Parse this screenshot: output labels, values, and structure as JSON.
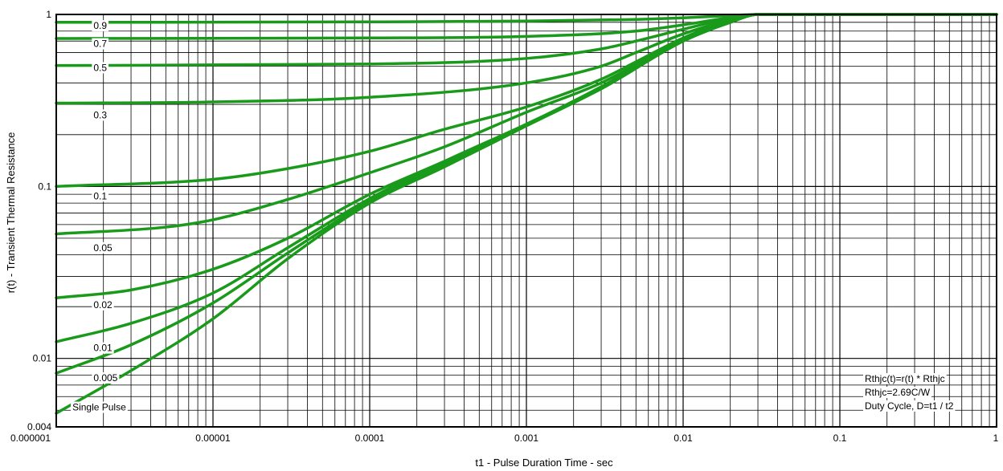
{
  "chart_data": {
    "type": "line",
    "xlabel": "t1 - Pulse Duration Time - sec",
    "ylabel": "r(t) - Transient Thermal Resistance",
    "x_scale": "log",
    "y_scale": "log",
    "xlim": [
      1e-06,
      1
    ],
    "ylim": [
      0.004,
      1
    ],
    "x_ticks": [
      {
        "value": 1e-06,
        "label": "0.000001"
      },
      {
        "value": 1e-05,
        "label": "0.00001"
      },
      {
        "value": 0.0001,
        "label": "0.0001"
      },
      {
        "value": 0.001,
        "label": "0.001"
      },
      {
        "value": 0.01,
        "label": "0.01"
      },
      {
        "value": 0.1,
        "label": "0.1"
      },
      {
        "value": 1,
        "label": "1"
      }
    ],
    "y_ticks": [
      {
        "value": 1,
        "label": "1"
      },
      {
        "value": 0.1,
        "label": "0.1"
      },
      {
        "value": 0.01,
        "label": "0.01"
      },
      {
        "value": 0.004,
        "label": "0.004"
      }
    ],
    "grid": true,
    "line_color": "#1a9a1a",
    "series": [
      {
        "name": "0.9",
        "label_anchor": [
          1.5e-06,
          0.86
        ],
        "points": [
          [
            1e-06,
            0.9
          ],
          [
            0.0001,
            0.905
          ],
          [
            0.001,
            0.915
          ],
          [
            0.005,
            0.935
          ],
          [
            0.01,
            0.955
          ],
          [
            0.02,
            0.985
          ],
          [
            0.03,
            1.0
          ],
          [
            1,
            1.0
          ]
        ]
      },
      {
        "name": "0.7",
        "label_anchor": [
          1.5e-06,
          0.675
        ],
        "points": [
          [
            1e-06,
            0.725
          ],
          [
            0.0001,
            0.73
          ],
          [
            0.001,
            0.745
          ],
          [
            0.005,
            0.8
          ],
          [
            0.01,
            0.87
          ],
          [
            0.02,
            0.96
          ],
          [
            0.03,
            1.0
          ],
          [
            1,
            1.0
          ]
        ]
      },
      {
        "name": "0.5",
        "label_anchor": [
          1.5e-06,
          0.49
        ],
        "points": [
          [
            1e-06,
            0.505
          ],
          [
            0.0001,
            0.515
          ],
          [
            0.001,
            0.555
          ],
          [
            0.003,
            0.63
          ],
          [
            0.005,
            0.7
          ],
          [
            0.01,
            0.82
          ],
          [
            0.02,
            0.95
          ],
          [
            0.03,
            1.0
          ],
          [
            1,
            1.0
          ]
        ]
      },
      {
        "name": "0.3",
        "label_anchor": [
          1.5e-06,
          0.26
        ],
        "points": [
          [
            1e-06,
            0.305
          ],
          [
            1e-05,
            0.31
          ],
          [
            0.0001,
            0.33
          ],
          [
            0.001,
            0.4
          ],
          [
            0.003,
            0.5
          ],
          [
            0.005,
            0.6
          ],
          [
            0.01,
            0.77
          ],
          [
            0.02,
            0.93
          ],
          [
            0.03,
            1.0
          ],
          [
            1,
            1.0
          ]
        ]
      },
      {
        "name": "0.1",
        "label_anchor": [
          1.5e-06,
          0.088
        ],
        "points": [
          [
            1e-06,
            0.1
          ],
          [
            1e-05,
            0.11
          ],
          [
            3e-05,
            0.127
          ],
          [
            0.0001,
            0.16
          ],
          [
            0.0003,
            0.215
          ],
          [
            0.001,
            0.29
          ],
          [
            0.003,
            0.42
          ],
          [
            0.005,
            0.53
          ],
          [
            0.01,
            0.73
          ],
          [
            0.02,
            0.92
          ],
          [
            0.03,
            1.0
          ],
          [
            1,
            1.0
          ]
        ]
      },
      {
        "name": "0.05",
        "label_anchor": [
          1.5e-06,
          0.044
        ],
        "points": [
          [
            1e-06,
            0.053
          ],
          [
            5e-06,
            0.058
          ],
          [
            1e-05,
            0.064
          ],
          [
            3e-05,
            0.084
          ],
          [
            0.0001,
            0.12
          ],
          [
            0.0003,
            0.17
          ],
          [
            0.001,
            0.27
          ],
          [
            0.003,
            0.4
          ],
          [
            0.01,
            0.72
          ],
          [
            0.02,
            0.91
          ],
          [
            0.03,
            1.0
          ],
          [
            1,
            1.0
          ]
        ]
      },
      {
        "name": "0.02",
        "label_anchor": [
          1.5e-06,
          0.0205
        ],
        "points": [
          [
            1e-06,
            0.0225
          ],
          [
            3e-06,
            0.025
          ],
          [
            1e-05,
            0.033
          ],
          [
            3e-05,
            0.05
          ],
          [
            0.0001,
            0.09
          ],
          [
            0.0003,
            0.14
          ],
          [
            0.001,
            0.23
          ],
          [
            0.003,
            0.38
          ],
          [
            0.01,
            0.71
          ],
          [
            0.02,
            0.9
          ],
          [
            0.03,
            1.0
          ],
          [
            1,
            1.0
          ]
        ]
      },
      {
        "name": "0.01",
        "label_anchor": [
          1.5e-06,
          0.0115
        ],
        "points": [
          [
            1e-06,
            0.0125
          ],
          [
            3e-06,
            0.016
          ],
          [
            1e-05,
            0.024
          ],
          [
            3e-05,
            0.044
          ],
          [
            0.0001,
            0.085
          ],
          [
            0.0003,
            0.14
          ],
          [
            0.001,
            0.23
          ],
          [
            0.003,
            0.37
          ],
          [
            0.01,
            0.7
          ],
          [
            0.02,
            0.9
          ],
          [
            0.03,
            1.0
          ],
          [
            1,
            1.0
          ]
        ]
      },
      {
        "name": "0.005",
        "label_anchor": [
          1.5e-06,
          0.0077
        ],
        "points": [
          [
            1e-06,
            0.0082
          ],
          [
            3e-06,
            0.012
          ],
          [
            1e-05,
            0.021
          ],
          [
            3e-05,
            0.041
          ],
          [
            0.0001,
            0.082
          ],
          [
            0.0003,
            0.135
          ],
          [
            0.001,
            0.23
          ],
          [
            0.003,
            0.37
          ],
          [
            0.01,
            0.7
          ],
          [
            0.02,
            0.9
          ],
          [
            0.03,
            1.0
          ],
          [
            1,
            1.0
          ]
        ]
      },
      {
        "name": "Single Pulse",
        "label_anchor": [
          1.1e-06,
          0.0052
        ],
        "points": [
          [
            1e-06,
            0.0048
          ],
          [
            3e-06,
            0.0085
          ],
          [
            1e-05,
            0.017
          ],
          [
            3e-05,
            0.038
          ],
          [
            0.0001,
            0.08
          ],
          [
            0.0003,
            0.13
          ],
          [
            0.001,
            0.225
          ],
          [
            0.003,
            0.37
          ],
          [
            0.01,
            0.7
          ],
          [
            0.02,
            0.9
          ],
          [
            0.03,
            1.0
          ],
          [
            1,
            1.0
          ]
        ]
      }
    ],
    "annotations": [
      "Rthjc(t)=r(t) * Rthjc",
      "Rthjc=2.69C/W",
      "Duty Cycle, D=t1 /  t2"
    ]
  }
}
